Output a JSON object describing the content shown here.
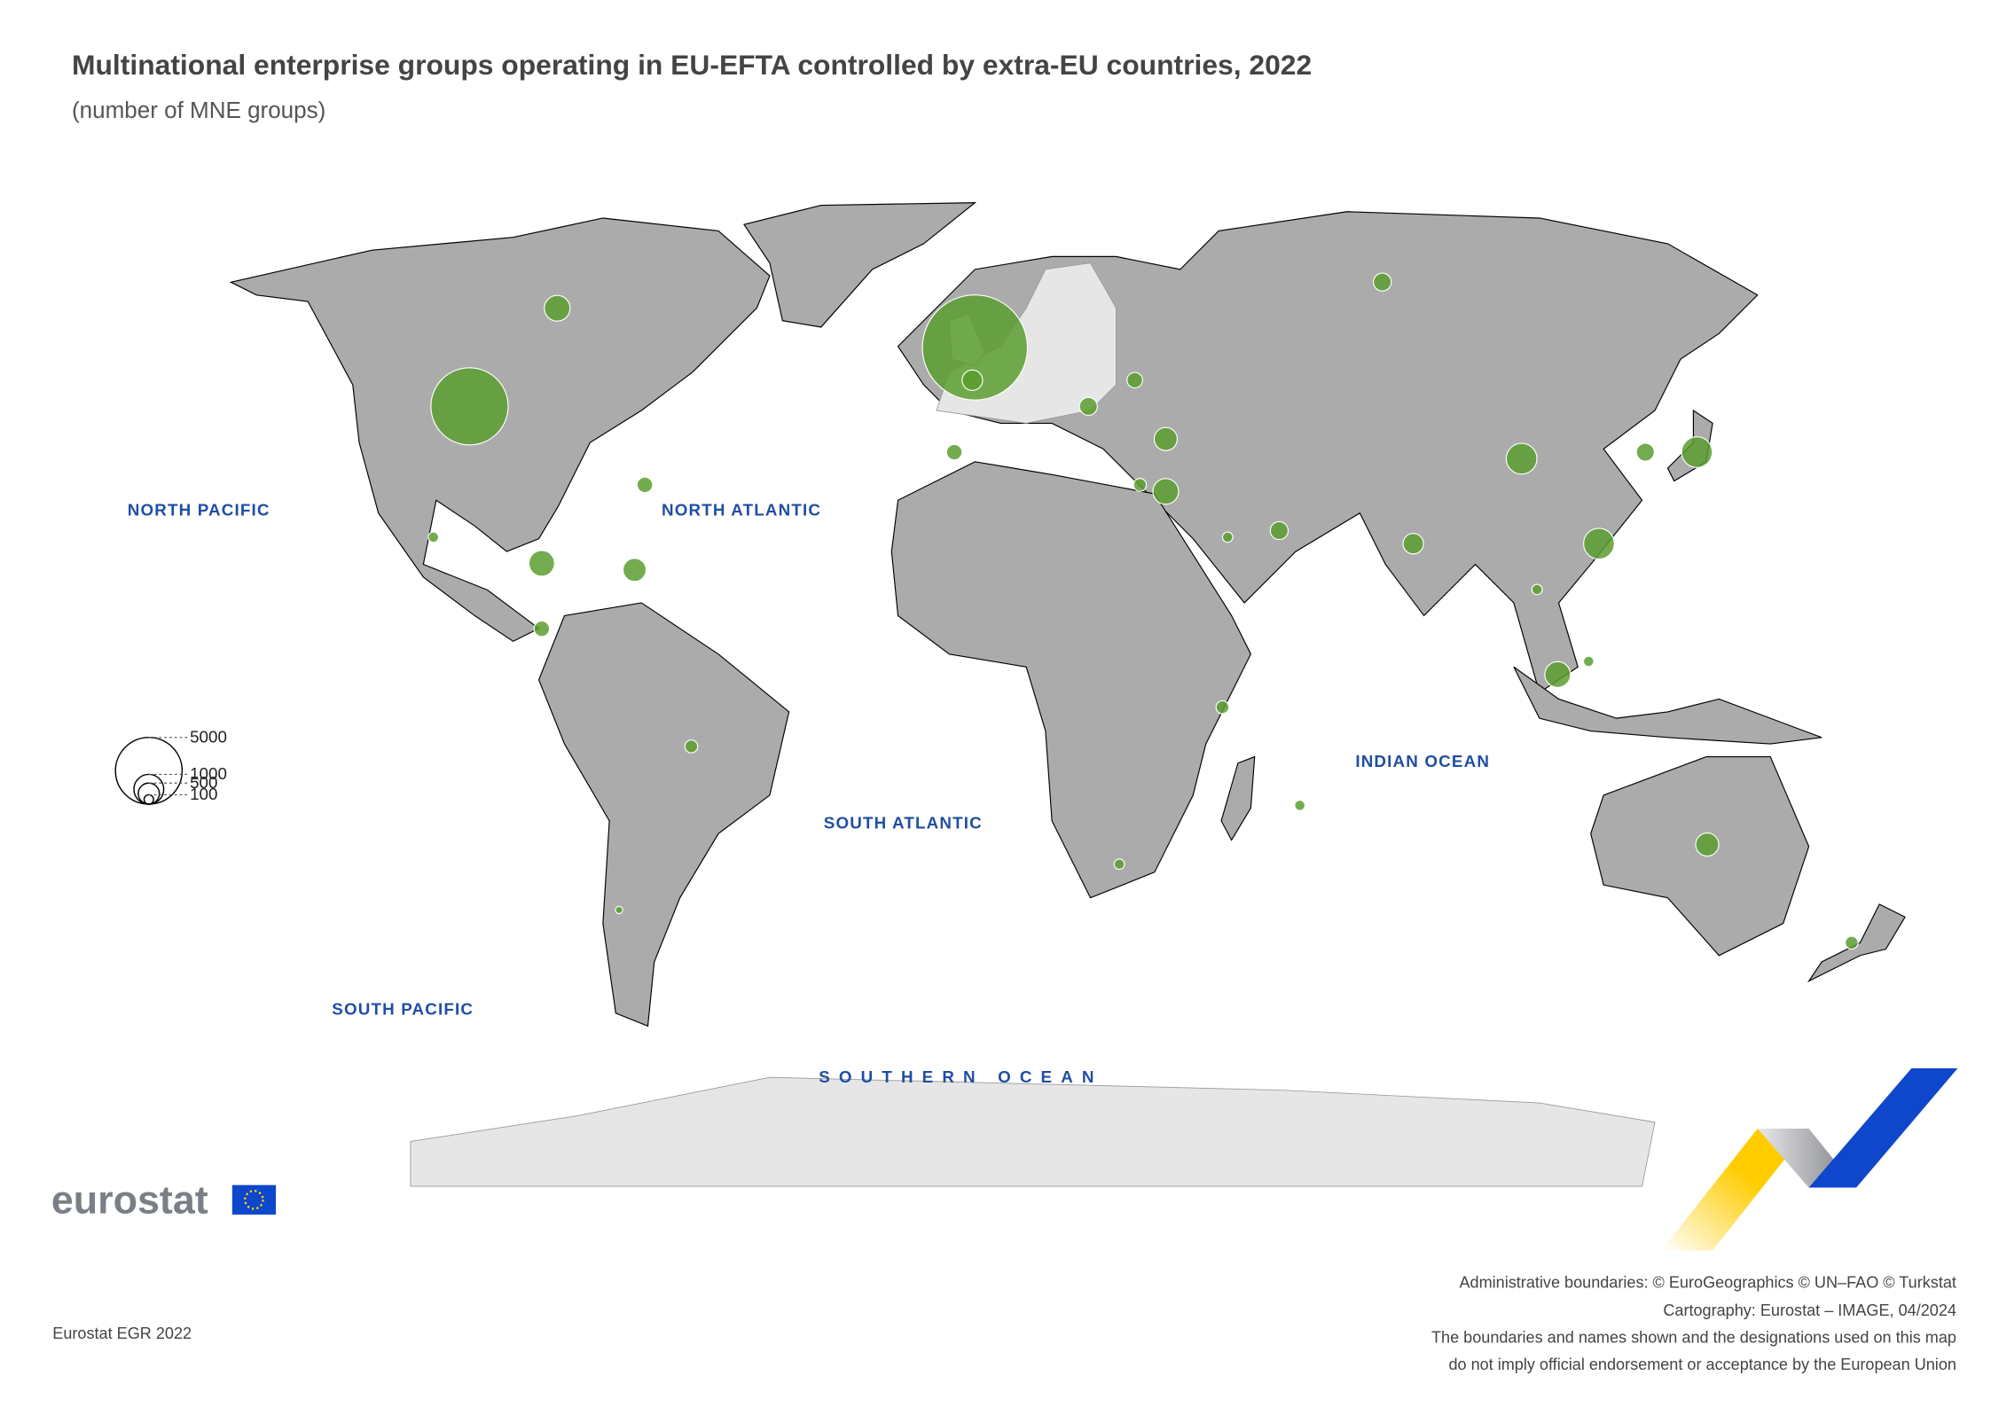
{
  "header": {
    "title": "Multinational enterprise groups operating in EU-EFTA controlled by extra-EU countries, 2022",
    "subtitle": "(number of MNE groups)"
  },
  "ocean_labels": [
    "NORTH PACIFIC",
    "NORTH ATLANTIC",
    "SOUTH PACIFIC",
    "SOUTH ATLANTIC",
    "INDIAN OCEAN",
    "SOUTHERN OCEAN"
  ],
  "legend": {
    "values": [
      5000,
      1000,
      500,
      100
    ]
  },
  "bubbles": [
    {
      "lon": -100,
      "lat": 42,
      "value": 6700
    },
    {
      "lon": -2,
      "lat": 51,
      "value": 12400
    },
    {
      "lon": -83,
      "lat": 57,
      "value": 740
    },
    {
      "lon": -2.5,
      "lat": 46,
      "value": 470
    },
    {
      "lon": 138,
      "lat": 35,
      "value": 1060
    },
    {
      "lon": 104,
      "lat": 34,
      "value": 1060
    },
    {
      "lon": 119,
      "lat": 21,
      "value": 1060
    },
    {
      "lon": 83,
      "lat": 21,
      "value": 470
    },
    {
      "lon": 111,
      "lat": 1,
      "value": 740
    },
    {
      "lon": 140,
      "lat": -25,
      "value": 600
    },
    {
      "lon": 35,
      "lat": 29,
      "value": 740
    },
    {
      "lon": 35,
      "lat": 37,
      "value": 600
    },
    {
      "lon": 77,
      "lat": 61,
      "value": 360
    },
    {
      "lon": -86,
      "lat": 18,
      "value": 740
    },
    {
      "lon": -66,
      "lat": 30,
      "value": 270
    },
    {
      "lon": -68,
      "lat": 17,
      "value": 600
    },
    {
      "lon": 128,
      "lat": 35,
      "value": 360
    },
    {
      "lon": -57,
      "lat": -10,
      "value": 185
    },
    {
      "lon": -86,
      "lat": 8,
      "value": 270
    },
    {
      "lon": 57,
      "lat": 23,
      "value": 360
    },
    {
      "lon": -107,
      "lat": 22,
      "value": 120
    },
    {
      "lon": 26,
      "lat": -28,
      "value": 120
    },
    {
      "lon": 168,
      "lat": -40,
      "value": 185
    },
    {
      "lon": 61,
      "lat": -19,
      "value": 120
    },
    {
      "lon": 20,
      "lat": 42,
      "value": 360
    },
    {
      "lon": 29,
      "lat": 46,
      "value": 270
    },
    {
      "lon": -6,
      "lat": 35,
      "value": 270
    },
    {
      "lon": 47,
      "lat": 22,
      "value": 120
    },
    {
      "lon": 117,
      "lat": 3,
      "value": 120
    },
    {
      "lon": 46,
      "lat": -4,
      "value": 185
    },
    {
      "lon": 107,
      "lat": 14,
      "value": 120
    },
    {
      "lon": -71,
      "lat": -35,
      "value": 60
    },
    {
      "lon": 30,
      "lat": 30,
      "value": 185
    }
  ],
  "logo": {
    "text": "eurostat"
  },
  "footer": {
    "source": "Eurostat EGR 2022",
    "credits": [
      "Administrative boundaries: © EuroGeographics © UN–FAO © Turkstat",
      "Cartography: Eurostat – IMAGE, 04/2024",
      "The boundaries and names shown and the designations used on this map",
      "do not imply official endorsement or acceptance by the European Union"
    ]
  }
}
